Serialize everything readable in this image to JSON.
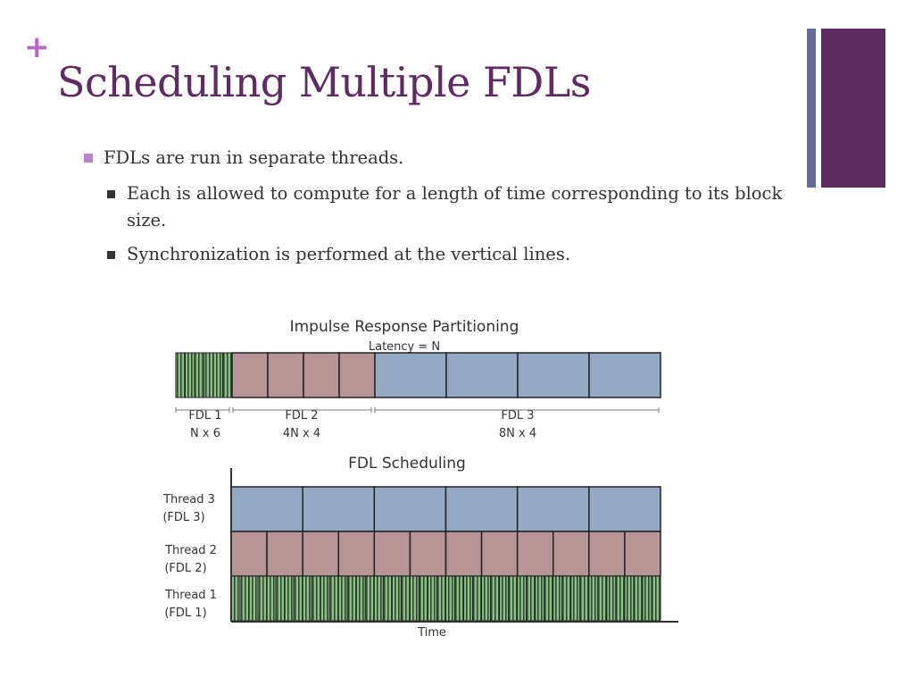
{
  "slide": {
    "plus_glyph": "+",
    "title": "Scheduling Multiple FDLs"
  },
  "bullets": [
    {
      "level": 1,
      "text": "FDLs are run in separate threads."
    },
    {
      "level": 2,
      "text": "Each is allowed to compute for a length of time corresponding to its block size."
    },
    {
      "level": 2,
      "text": "Synchronization is performed at the vertical lines."
    }
  ],
  "diagram": {
    "partition": {
      "title": "Impulse Response Partitioning",
      "latency": "Latency = N",
      "fdl1": {
        "name": "FDL 1",
        "size": "N x 6",
        "blocks": 6,
        "color": "#8fbc8b"
      },
      "fdl2": {
        "name": "FDL 2",
        "size": "4N x 4",
        "blocks": 4,
        "color": "#b59595"
      },
      "fdl3": {
        "name": "FDL 3",
        "size": "8N x 4",
        "blocks": 4,
        "color": "#94a9c2"
      }
    },
    "schedule": {
      "title": "FDL Scheduling",
      "x_label": "Time",
      "threads": [
        {
          "label_1": "Thread 3",
          "label_2": "(FDL 3)",
          "blocks": 6,
          "color": "#94a9c2"
        },
        {
          "label_1": "Thread 2",
          "label_2": "(FDL 2)",
          "blocks": 12,
          "color": "#b59595"
        },
        {
          "label_1": "Thread 1",
          "label_2": "(FDL 1)",
          "blocks": 48,
          "color": "#8fbc8b"
        }
      ]
    }
  }
}
